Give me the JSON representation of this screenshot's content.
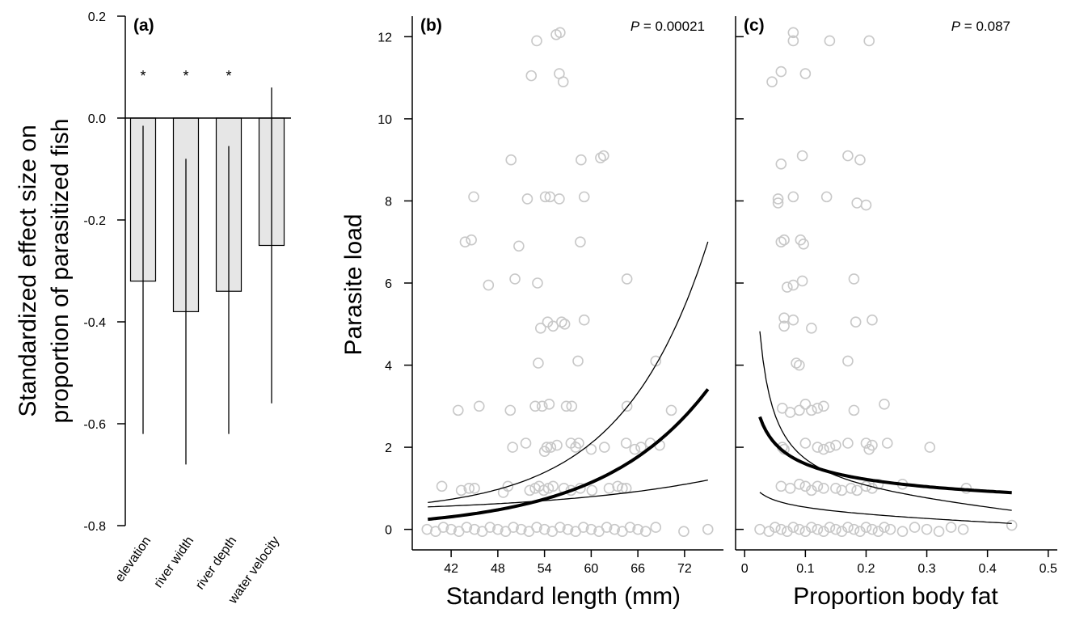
{
  "chart_data": [
    {
      "id": "a",
      "type": "bar",
      "title": "(a)",
      "ylabel_line1": "Standardized effect size on",
      "ylabel_line2": "proportion of parasitized fish",
      "categories": [
        "elevation",
        "river width",
        "river depth",
        "water velocity"
      ],
      "values": [
        -0.32,
        -0.38,
        -0.34,
        -0.25
      ],
      "ci_low": [
        -0.62,
        -0.68,
        -0.62,
        -0.56
      ],
      "ci_high": [
        -0.015,
        -0.08,
        -0.055,
        0.06
      ],
      "significant": [
        "*",
        "*",
        "*",
        ""
      ],
      "ylim": [
        -0.8,
        0.2
      ],
      "yticks": [
        "0.2",
        "0.0",
        "-0.2",
        "-0.4",
        "-0.6",
        "-0.8"
      ],
      "bar_color": "#e6e6e6"
    },
    {
      "id": "b",
      "type": "scatter",
      "title": "(b)",
      "annotation_p": "P",
      "annotation_rest": " = 0.00021",
      "xlabel": "Standard length (mm)",
      "ylabel": "Parasite load",
      "xlim": [
        37,
        77
      ],
      "ylim": [
        -0.5,
        12.5
      ],
      "xticks": [
        "42",
        "48",
        "54",
        "60",
        "66",
        "72"
      ],
      "yticks": [
        "0",
        "2",
        "4",
        "6",
        "8",
        "10",
        "12"
      ],
      "point_color": "#c8c8c8",
      "fit": {
        "x": [
          39,
          75
        ],
        "a": -1.4,
        "b": 0.073
      },
      "ci_upper": {
        "a": -1.37,
        "b": 0.0905
      },
      "ci_lower": {
        "a": -1.91,
        "b": 0.0469
      },
      "points": [
        [
          53,
          11.9
        ],
        [
          55.5,
          12.05
        ],
        [
          56,
          12.1
        ],
        [
          52.3,
          11.05
        ],
        [
          55.9,
          11.1
        ],
        [
          56.4,
          10.9
        ],
        [
          49.7,
          9.0
        ],
        [
          58.7,
          9.0
        ],
        [
          61.2,
          9.05
        ],
        [
          61.6,
          9.1
        ],
        [
          44.9,
          8.1
        ],
        [
          51.8,
          8.05
        ],
        [
          54.1,
          8.1
        ],
        [
          54.7,
          8.1
        ],
        [
          55.9,
          8.05
        ],
        [
          59.1,
          8.1
        ],
        [
          43.8,
          7.0
        ],
        [
          44.6,
          7.05
        ],
        [
          50.7,
          6.9
        ],
        [
          58.6,
          7.0
        ],
        [
          46.8,
          5.95
        ],
        [
          50.2,
          6.1
        ],
        [
          53.1,
          6.0
        ],
        [
          64.6,
          6.1
        ],
        [
          53.5,
          4.9
        ],
        [
          54.4,
          5.05
        ],
        [
          55.1,
          4.95
        ],
        [
          56.2,
          5.05
        ],
        [
          56.6,
          5.0
        ],
        [
          59.1,
          5.1
        ],
        [
          53.2,
          4.05
        ],
        [
          58.3,
          4.1
        ],
        [
          68.3,
          4.1
        ],
        [
          42.9,
          2.9
        ],
        [
          45.6,
          3.0
        ],
        [
          49.6,
          2.9
        ],
        [
          52.8,
          3.0
        ],
        [
          53.7,
          3.0
        ],
        [
          54.6,
          3.05
        ],
        [
          56.8,
          3.0
        ],
        [
          57.5,
          3.0
        ],
        [
          64.6,
          3.0
        ],
        [
          70.3,
          2.9
        ],
        [
          49.9,
          2.0
        ],
        [
          51.6,
          2.1
        ],
        [
          54.0,
          1.9
        ],
        [
          54.3,
          2.0
        ],
        [
          54.8,
          2.0
        ],
        [
          55.6,
          2.05
        ],
        [
          57.4,
          2.1
        ],
        [
          58.0,
          2.0
        ],
        [
          58.4,
          2.1
        ],
        [
          60.0,
          1.95
        ],
        [
          61.7,
          2.0
        ],
        [
          64.5,
          2.1
        ],
        [
          65.6,
          1.95
        ],
        [
          66.4,
          2.0
        ],
        [
          67.6,
          2.1
        ],
        [
          68.8,
          2.05
        ],
        [
          40.8,
          1.05
        ],
        [
          43.3,
          0.95
        ],
        [
          44.3,
          1.0
        ],
        [
          45.0,
          1.0
        ],
        [
          48.7,
          0.9
        ],
        [
          49.3,
          1.05
        ],
        [
          52.1,
          0.95
        ],
        [
          52.8,
          1.0
        ],
        [
          53.3,
          1.05
        ],
        [
          53.9,
          0.95
        ],
        [
          54.5,
          1.0
        ],
        [
          55.1,
          1.05
        ],
        [
          56.5,
          1.0
        ],
        [
          57.4,
          0.95
        ],
        [
          58.6,
          1.0
        ],
        [
          60.1,
          0.95
        ],
        [
          62.3,
          1.0
        ],
        [
          63.4,
          1.05
        ],
        [
          64.0,
          1.0
        ],
        [
          64.5,
          1.0
        ],
        [
          38.9,
          0.0
        ],
        [
          40.0,
          -0.05
        ],
        [
          41.0,
          0.05
        ],
        [
          42.0,
          0.0
        ],
        [
          43.0,
          -0.05
        ],
        [
          44.0,
          0.05
        ],
        [
          45.0,
          0.0
        ],
        [
          46.0,
          -0.05
        ],
        [
          47.0,
          0.05
        ],
        [
          48.0,
          0.0
        ],
        [
          49.0,
          -0.05
        ],
        [
          50.0,
          0.05
        ],
        [
          51.0,
          0.0
        ],
        [
          52.0,
          -0.05
        ],
        [
          53.0,
          0.05
        ],
        [
          54.0,
          0.0
        ],
        [
          55.0,
          -0.05
        ],
        [
          56.0,
          0.05
        ],
        [
          57.0,
          0.0
        ],
        [
          58.0,
          -0.05
        ],
        [
          59.0,
          0.05
        ],
        [
          60.0,
          0.0
        ],
        [
          61.0,
          -0.05
        ],
        [
          62.0,
          0.05
        ],
        [
          63.0,
          0.0
        ],
        [
          64.0,
          -0.05
        ],
        [
          65.0,
          0.05
        ],
        [
          66.0,
          0.0
        ],
        [
          67.0,
          -0.05
        ],
        [
          68.3,
          0.05
        ],
        [
          71.9,
          -0.05
        ],
        [
          75.0,
          0.0
        ]
      ]
    },
    {
      "id": "c",
      "type": "scatter",
      "title": "(c)",
      "annotation_p": "P",
      "annotation_rest": " = 0.087",
      "xlabel": "Proportion body fat",
      "ylabel": "",
      "xlim": [
        -0.015,
        0.515
      ],
      "ylim": [
        -0.5,
        12.5
      ],
      "xticks": [
        "0",
        "0.1",
        "0.2",
        "0.3",
        "0.4",
        "0.5"
      ],
      "yticks": [],
      "point_color": "#c8c8c8",
      "fit": {
        "x": [
          0.025,
          0.44
        ],
        "a": 0.65,
        "b": -0.39
      },
      "ci_upper": {
        "a": 0.1,
        "b": -1.42,
        "c": 0.86
      },
      "ci_lower": {
        "a": 0.23,
        "b": -0.55,
        "c": 0.13
      },
      "points": [
        [
          0.08,
          12.1
        ],
        [
          0.08,
          11.9
        ],
        [
          0.14,
          11.9
        ],
        [
          0.205,
          11.9
        ],
        [
          0.045,
          10.9
        ],
        [
          0.06,
          11.15
        ],
        [
          0.1,
          11.1
        ],
        [
          0.06,
          8.9
        ],
        [
          0.095,
          9.1
        ],
        [
          0.17,
          9.1
        ],
        [
          0.19,
          9.0
        ],
        [
          0.055,
          8.05
        ],
        [
          0.055,
          7.95
        ],
        [
          0.08,
          8.1
        ],
        [
          0.135,
          8.1
        ],
        [
          0.185,
          7.95
        ],
        [
          0.2,
          7.9
        ],
        [
          0.06,
          7.0
        ],
        [
          0.065,
          7.05
        ],
        [
          0.092,
          7.05
        ],
        [
          0.097,
          6.95
        ],
        [
          0.07,
          5.9
        ],
        [
          0.08,
          5.95
        ],
        [
          0.095,
          6.05
        ],
        [
          0.18,
          6.1
        ],
        [
          0.065,
          5.15
        ],
        [
          0.065,
          4.95
        ],
        [
          0.08,
          5.1
        ],
        [
          0.11,
          4.9
        ],
        [
          0.183,
          5.05
        ],
        [
          0.21,
          5.1
        ],
        [
          0.085,
          4.05
        ],
        [
          0.09,
          4.0
        ],
        [
          0.17,
          4.1
        ],
        [
          0.062,
          2.95
        ],
        [
          0.075,
          2.85
        ],
        [
          0.09,
          2.9
        ],
        [
          0.1,
          3.05
        ],
        [
          0.11,
          2.9
        ],
        [
          0.12,
          2.95
        ],
        [
          0.13,
          3.0
        ],
        [
          0.18,
          2.9
        ],
        [
          0.23,
          3.05
        ],
        [
          0.062,
          2.0
        ],
        [
          0.065,
          1.95
        ],
        [
          0.1,
          2.1
        ],
        [
          0.12,
          2.0
        ],
        [
          0.13,
          1.95
        ],
        [
          0.14,
          2.0
        ],
        [
          0.15,
          2.05
        ],
        [
          0.17,
          2.1
        ],
        [
          0.2,
          2.1
        ],
        [
          0.205,
          1.95
        ],
        [
          0.21,
          2.05
        ],
        [
          0.235,
          2.1
        ],
        [
          0.305,
          2.0
        ],
        [
          0.06,
          1.05
        ],
        [
          0.075,
          1.0
        ],
        [
          0.09,
          1.1
        ],
        [
          0.1,
          1.05
        ],
        [
          0.11,
          0.95
        ],
        [
          0.12,
          1.05
        ],
        [
          0.13,
          1.0
        ],
        [
          0.15,
          1.0
        ],
        [
          0.16,
          0.95
        ],
        [
          0.175,
          1.0
        ],
        [
          0.185,
          0.95
        ],
        [
          0.2,
          1.05
        ],
        [
          0.21,
          1.0
        ],
        [
          0.22,
          1.1
        ],
        [
          0.26,
          1.1
        ],
        [
          0.365,
          1.0
        ],
        [
          0.025,
          0.0
        ],
        [
          0.04,
          -0.05
        ],
        [
          0.05,
          0.05
        ],
        [
          0.06,
          0.0
        ],
        [
          0.07,
          -0.05
        ],
        [
          0.08,
          0.05
        ],
        [
          0.09,
          0.0
        ],
        [
          0.1,
          -0.05
        ],
        [
          0.11,
          0.05
        ],
        [
          0.12,
          0.0
        ],
        [
          0.13,
          -0.05
        ],
        [
          0.14,
          0.05
        ],
        [
          0.15,
          0.0
        ],
        [
          0.16,
          -0.05
        ],
        [
          0.17,
          0.05
        ],
        [
          0.18,
          0.0
        ],
        [
          0.19,
          -0.05
        ],
        [
          0.2,
          0.05
        ],
        [
          0.21,
          0.0
        ],
        [
          0.22,
          -0.05
        ],
        [
          0.23,
          0.05
        ],
        [
          0.24,
          0.0
        ],
        [
          0.26,
          -0.05
        ],
        [
          0.28,
          0.05
        ],
        [
          0.3,
          0.0
        ],
        [
          0.32,
          -0.05
        ],
        [
          0.34,
          0.05
        ],
        [
          0.36,
          0.0
        ],
        [
          0.44,
          0.1
        ]
      ]
    }
  ]
}
